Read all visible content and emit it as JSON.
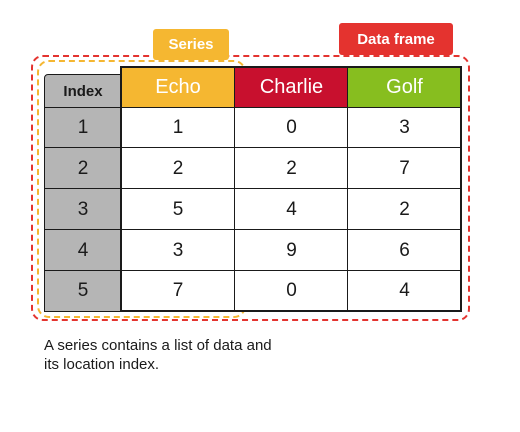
{
  "labels": {
    "series": "Series",
    "data_frame": "Data frame"
  },
  "table": {
    "index_header": "Index",
    "columns": [
      "Echo",
      "Charlie",
      "Golf"
    ],
    "index": [
      "1",
      "2",
      "3",
      "4",
      "5"
    ],
    "rows": [
      [
        "1",
        "0",
        "3"
      ],
      [
        "2",
        "2",
        "7"
      ],
      [
        "5",
        "4",
        "2"
      ],
      [
        "3",
        "9",
        "6"
      ],
      [
        "7",
        "0",
        "4"
      ]
    ]
  },
  "caption": "A series contains a list of data and its location index.",
  "colors": {
    "series": "#f5b731",
    "data_frame": "#e4332f",
    "echo": "#f5b731",
    "charlie": "#c8102e",
    "golf": "#87be1f",
    "index": "#b5b5b5"
  }
}
